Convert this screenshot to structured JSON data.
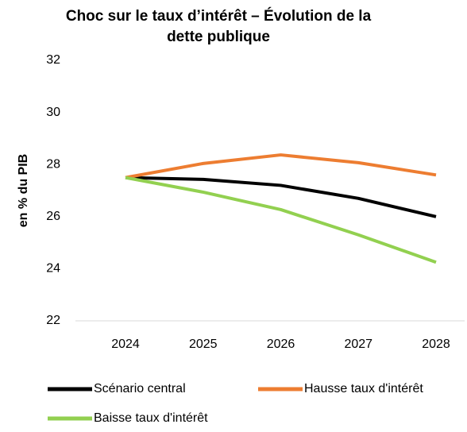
{
  "chart_data": {
    "type": "line",
    "title": "Choc sur le taux d’intérêt – Évolution de la dette publique",
    "y_label": "en % du PIB",
    "categories": [
      "2024",
      "2025",
      "2026",
      "2027",
      "2028"
    ],
    "series": [
      {
        "name": "Scénario central",
        "color": "#000000",
        "values": [
          27.5,
          27.43,
          27.2,
          26.7,
          26.0
        ]
      },
      {
        "name": "Hausse taux d'intérêt",
        "color": "#ed7d31",
        "values": [
          27.5,
          28.04,
          28.37,
          28.07,
          27.6
        ]
      },
      {
        "name": "Baisse taux d'intérêt",
        "color": "#92d050",
        "values": [
          27.5,
          26.94,
          26.27,
          25.3,
          24.25
        ]
      }
    ],
    "ylim": [
      22,
      32
    ],
    "yticks": [
      22,
      24,
      26,
      28,
      30,
      32
    ],
    "grid": false
  }
}
